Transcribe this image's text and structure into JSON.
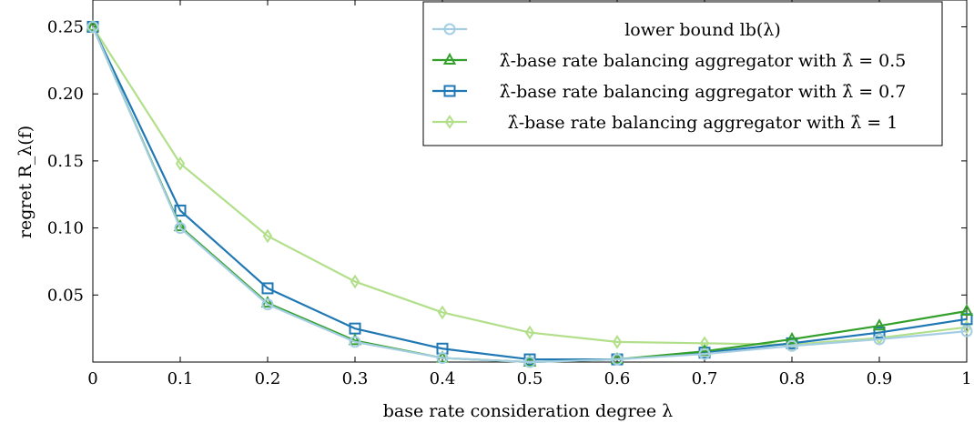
{
  "chart_data": {
    "type": "line",
    "xlabel": "base rate consideration degree λ",
    "ylabel": "regret R_λ(f)",
    "xlim": [
      0,
      1
    ],
    "ylim": [
      0,
      0.27
    ],
    "x_ticks": [
      0,
      0.1,
      0.2,
      0.3,
      0.4,
      0.5,
      0.6,
      0.7,
      0.8,
      0.9,
      1
    ],
    "x_tick_labels": [
      "0",
      "0.1",
      "0.2",
      "0.3",
      "0.4",
      "0.5",
      "0.6",
      "0.7",
      "0.8",
      "0.9",
      "1"
    ],
    "y_ticks": [
      0.05,
      0.1,
      0.15,
      0.2,
      0.25
    ],
    "y_tick_labels": [
      "0.05",
      "0.10",
      "0.15",
      "0.20",
      "0.25"
    ],
    "grid": false,
    "legend_position": "top-right",
    "x": [
      0,
      0.1,
      0.2,
      0.3,
      0.4,
      0.5,
      0.6,
      0.7,
      0.8,
      0.9,
      1
    ],
    "series": [
      {
        "name": "lower bound lb(λ)",
        "color": "#a6cee3",
        "marker": "circle",
        "values": [
          0.25,
          0.1,
          0.043,
          0.015,
          0.003,
          0.0,
          0.002,
          0.006,
          0.012,
          0.017,
          0.023
        ]
      },
      {
        "name": "λ̂-base rate balancing aggregator with λ̂ = 0.5",
        "color": "#33a02c",
        "marker": "triangle",
        "values": [
          0.25,
          0.101,
          0.044,
          0.016,
          0.003,
          0.0,
          0.002,
          0.008,
          0.017,
          0.027,
          0.038
        ]
      },
      {
        "name": "λ̂-base rate balancing aggregator with λ̂ = 0.7",
        "color": "#1f78b4",
        "marker": "square",
        "values": [
          0.25,
          0.113,
          0.055,
          0.025,
          0.01,
          0.002,
          0.002,
          0.007,
          0.014,
          0.022,
          0.032
        ]
      },
      {
        "name": "λ̂-base rate balancing aggregator with λ̂ = 1",
        "color": "#b2df8a",
        "marker": "diamond",
        "values": [
          0.25,
          0.148,
          0.094,
          0.06,
          0.037,
          0.022,
          0.015,
          0.014,
          0.013,
          0.018,
          0.026
        ]
      }
    ]
  }
}
